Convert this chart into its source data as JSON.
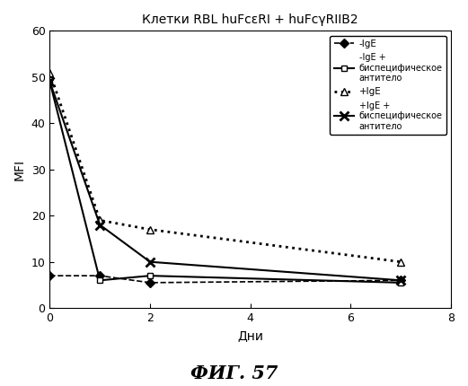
{
  "title": "Клетки RBL huFcεRI + huFcγRIIB2",
  "xlabel": "Дни",
  "ylabel": "MFI",
  "caption": "ФИГ. 57",
  "xlim": [
    0,
    8
  ],
  "ylim": [
    0,
    60
  ],
  "xticks": [
    0,
    2,
    4,
    6,
    8
  ],
  "yticks": [
    0,
    10,
    20,
    30,
    40,
    50,
    60
  ],
  "series": [
    {
      "label": "-IgE",
      "label2": null,
      "x": [
        0,
        1,
        2,
        7
      ],
      "y": [
        7,
        7,
        5.5,
        6
      ],
      "linestyle": "--",
      "marker": "D",
      "markerfacecolor": "#000000",
      "color": "#000000",
      "markersize": 5,
      "linewidth": 1.2
    },
    {
      "label": "-IgE +",
      "label2": "биспецифическое\nантитело",
      "x": [
        0,
        1,
        2,
        7
      ],
      "y": [
        49,
        6,
        7,
        5.5
      ],
      "linestyle": "-",
      "marker": "s",
      "markerfacecolor": "#ffffff",
      "color": "#000000",
      "markersize": 5,
      "linewidth": 1.5
    },
    {
      "label": "+IgE",
      "label2": null,
      "x": [
        0,
        1,
        2,
        7
      ],
      "y": [
        51,
        19,
        17,
        10
      ],
      "linestyle": ":",
      "marker": "^",
      "markerfacecolor": "#ffffff",
      "color": "#000000",
      "markersize": 6,
      "linewidth": 2.0
    },
    {
      "label": "+IgE +",
      "label2": "биспецифическое\nантитело",
      "x": [
        0,
        1,
        2,
        7
      ],
      "y": [
        49,
        18,
        10,
        6
      ],
      "linestyle": "-",
      "marker": "x",
      "markerfacecolor": "#000000",
      "color": "#000000",
      "markersize": 7,
      "linewidth": 1.5,
      "markeredgewidth": 2.0
    }
  ],
  "legend_fontsize": 7.5,
  "legend_label_fontsize": 7.0,
  "title_fontsize": 10,
  "axis_label_fontsize": 10,
  "caption_fontsize": 15,
  "background_color": "#ffffff"
}
